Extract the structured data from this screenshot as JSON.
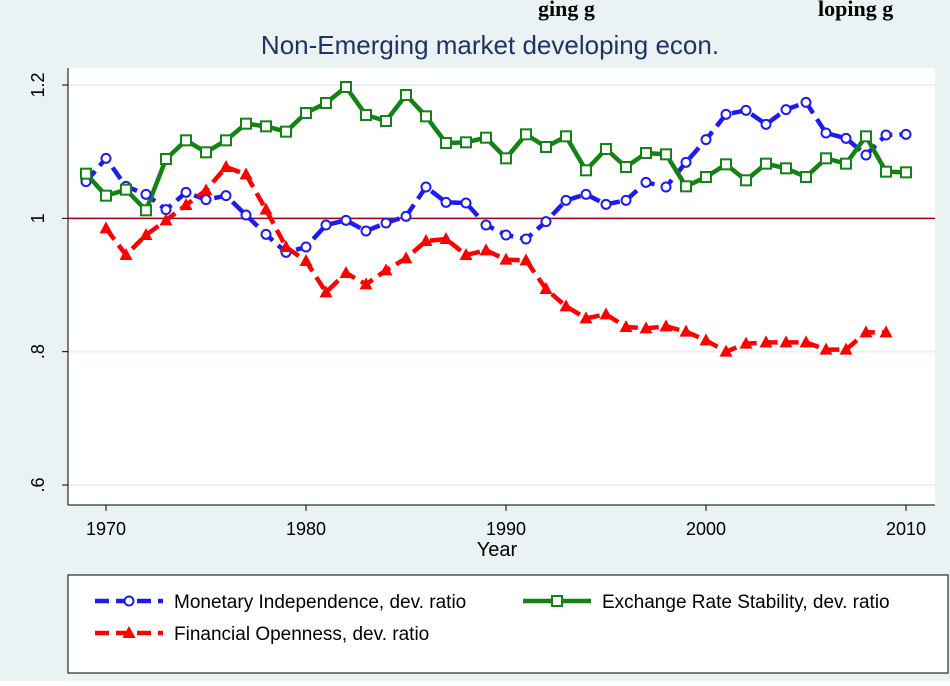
{
  "header_fragments": [
    "ging g",
    "loping g"
  ],
  "chart_data": {
    "type": "line",
    "title": "Non-Emerging market developing econ.",
    "x_label": "Year",
    "x": [
      1969,
      1970,
      1971,
      1972,
      1973,
      1974,
      1975,
      1976,
      1977,
      1978,
      1979,
      1980,
      1981,
      1982,
      1983,
      1984,
      1985,
      1986,
      1987,
      1988,
      1989,
      1990,
      1991,
      1992,
      1993,
      1994,
      1995,
      1996,
      1997,
      1998,
      1999,
      2000,
      2001,
      2002,
      2003,
      2004,
      2005,
      2006,
      2007,
      2008,
      2009,
      2010
    ],
    "series": [
      {
        "name": "Monetary Independence, dev. ratio",
        "color": "#1c1cf0",
        "marker": "circle",
        "values": [
          1.055,
          1.09,
          1.048,
          1.036,
          1.013,
          1.039,
          1.028,
          1.034,
          1.005,
          0.976,
          0.949,
          0.957,
          0.99,
          0.997,
          0.981,
          0.993,
          1.003,
          1.047,
          1.024,
          1.023,
          0.99,
          0.975,
          0.969,
          0.995,
          1.027,
          1.036,
          1.021,
          1.027,
          1.054,
          1.047,
          1.084,
          1.118,
          1.156,
          1.162,
          1.141,
          1.163,
          1.174,
          1.128,
          1.12,
          1.095,
          1.125,
          1.126
        ]
      },
      {
        "name": "Exchange Rate Stability, dev. ratio",
        "color": "#148214",
        "marker": "square",
        "values": [
          1.067,
          1.034,
          1.043,
          1.012,
          1.089,
          1.117,
          1.099,
          1.117,
          1.142,
          1.138,
          1.13,
          1.158,
          1.173,
          1.197,
          1.155,
          1.146,
          1.185,
          1.153,
          1.113,
          1.114,
          1.121,
          1.09,
          1.126,
          1.107,
          1.123,
          1.072,
          1.104,
          1.077,
          1.098,
          1.096,
          1.048,
          1.062,
          1.081,
          1.057,
          1.082,
          1.075,
          1.062,
          1.09,
          1.082,
          1.123,
          1.07,
          1.069
        ]
      },
      {
        "name": "Financial Openness, dev. ratio",
        "color": "#ff0000",
        "marker": "triangle",
        "values": [
          null,
          0.985,
          0.945,
          0.975,
          0.997,
          1.02,
          1.042,
          1.077,
          1.066,
          1.013,
          0.957,
          0.936,
          0.889,
          0.918,
          0.901,
          0.922,
          0.94,
          0.966,
          0.969,
          0.945,
          0.952,
          0.938,
          0.937,
          0.894,
          0.868,
          0.85,
          0.856,
          0.837,
          0.835,
          0.838,
          0.83,
          0.817,
          0.8,
          0.812,
          0.814,
          0.814,
          0.814,
          0.803,
          0.803,
          0.829,
          0.829,
          null
        ]
      }
    ],
    "xlim": [
      1968.1,
      2011.45
    ],
    "xticks": [
      1970,
      1980,
      1990,
      2000,
      2010
    ],
    "ylim": [
      0.57,
      1.2255
    ],
    "yticks": [
      {
        "value": 0.6,
        "label": ".6"
      },
      {
        "value": 0.8,
        "label": ".8"
      },
      1,
      1.2
    ],
    "hline": 1,
    "hline_color": "#a0001e",
    "grid": true
  }
}
